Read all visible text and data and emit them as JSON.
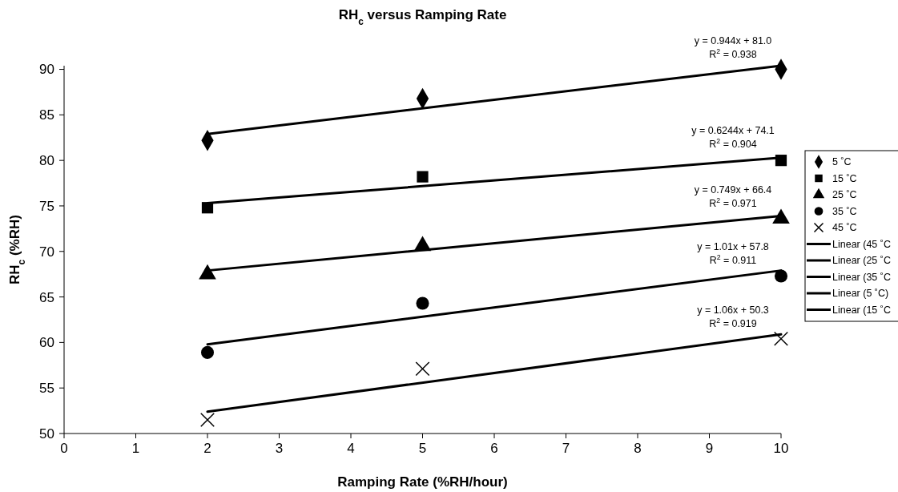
{
  "chart_data": {
    "type": "scatter",
    "title": "RH$_{c}$ versus Ramping Rate",
    "xlabel": "Ramping Rate (%RH/hour)",
    "ylabel": "RH$_{c}$ (%RH)",
    "xlim": [
      0,
      10
    ],
    "xticks": [
      0,
      1,
      2,
      3,
      4,
      5,
      6,
      7,
      8,
      9,
      10
    ],
    "ylim": [
      50,
      90.4
    ],
    "yticks": [
      50,
      55,
      60,
      65,
      70,
      75,
      80,
      85,
      90
    ],
    "legend": "right",
    "grid": false,
    "series": [
      {
        "name": "5 ˚C",
        "type": "scatter",
        "marker": "diamond",
        "color": "#000000",
        "x": [
          2,
          5,
          10
        ],
        "values": [
          82.2,
          86.8,
          90.0
        ]
      },
      {
        "name": "15 ˚C",
        "type": "scatter",
        "marker": "square",
        "color": "#000000",
        "x": [
          2,
          5,
          10
        ],
        "values": [
          74.8,
          78.2,
          80.0
        ]
      },
      {
        "name": "25 ˚C",
        "type": "scatter",
        "marker": "triangle",
        "color": "#000000",
        "x": [
          2,
          5,
          10
        ],
        "values": [
          67.5,
          70.6,
          73.6
        ]
      },
      {
        "name": "35 ˚C",
        "type": "scatter",
        "marker": "circle",
        "color": "#000000",
        "x": [
          2,
          5,
          10
        ],
        "values": [
          58.9,
          64.3,
          67.3
        ]
      },
      {
        "name": "45 ˚C",
        "type": "scatter",
        "marker": "cross",
        "color": "#000000",
        "x": [
          2,
          5,
          10
        ],
        "values": [
          51.5,
          57.1,
          60.4
        ]
      },
      {
        "name": "Linear (45 ˚C",
        "type": "line",
        "marker": "none",
        "line_style": "solid",
        "color": "#000000",
        "x": [
          2,
          10
        ],
        "values": [
          52.4,
          60.9
        ]
      },
      {
        "name": "Linear (25 ˚C",
        "type": "line",
        "marker": "none",
        "line_style": "solid",
        "color": "#000000",
        "x": [
          2,
          10
        ],
        "values": [
          67.9,
          73.9
        ]
      },
      {
        "name": "Linear (35 ˚C",
        "type": "line",
        "marker": "none",
        "line_style": "solid",
        "color": "#000000",
        "x": [
          2,
          10
        ],
        "values": [
          59.8,
          67.9
        ]
      },
      {
        "name": "Linear (5 ˚C)",
        "type": "line",
        "marker": "none",
        "line_style": "solid",
        "color": "#000000",
        "x": [
          2,
          10
        ],
        "values": [
          82.9,
          90.4
        ]
      },
      {
        "name": "Linear (15 ˚C",
        "type": "line",
        "marker": "none",
        "line_style": "solid",
        "color": "#000000",
        "x": [
          2,
          10
        ],
        "values": [
          75.3,
          80.3
        ]
      }
    ],
    "annotations": [
      "y = 0.944x + 81.0\nR$^{2}$ = 0.938",
      "y = 0.6244x + 74.1\nR$^{2}$ = 0.904",
      "y = 0.749x + 66.4\nR$^{2}$ = 0.971",
      "y = 1.01x + 57.8\nR$^{2}$ = 0.911",
      "y = 1.06x + 50.3\nR$^{2}$ = 0.919"
    ]
  }
}
